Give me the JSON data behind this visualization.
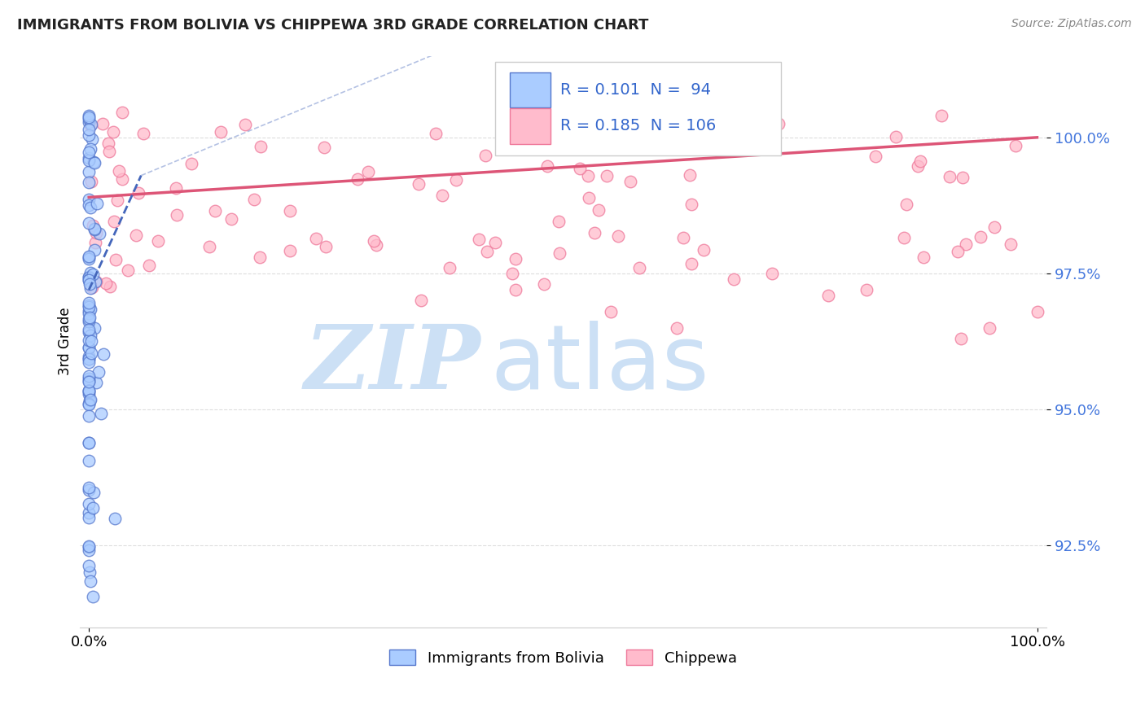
{
  "title": "IMMIGRANTS FROM BOLIVIA VS CHIPPEWA 3RD GRADE CORRELATION CHART",
  "source_text": "Source: ZipAtlas.com",
  "ylabel": "3rd Grade",
  "xlim_min": -1,
  "xlim_max": 101,
  "ylim_min": 91.0,
  "ylim_max": 101.5,
  "ytick_values": [
    92.5,
    95.0,
    97.5,
    100.0
  ],
  "ytick_labels": [
    "92.5%",
    "95.0%",
    "97.5%",
    "100.0%"
  ],
  "xtick_values": [
    0,
    100
  ],
  "xtick_labels": [
    "0.0%",
    "100.0%"
  ],
  "legend_text_blue": "R = 0.101  N =  94",
  "legend_text_pink": "R = 0.185  N = 106",
  "legend_label1": "Immigrants from Bolivia",
  "legend_label2": "Chippewa",
  "blue_fill": "#aaccff",
  "blue_edge": "#5577cc",
  "pink_fill": "#ffbbcc",
  "pink_edge": "#ee7799",
  "trend_blue_color": "#4466bb",
  "trend_pink_color": "#dd5577",
  "legend_color": "#3366cc",
  "tick_color": "#4477dd",
  "title_color": "#222222",
  "source_color": "#888888",
  "watermark_zip_color": "#cce0f5",
  "watermark_atlas_color": "#cce0f5",
  "grid_color": "#dddddd",
  "blue_seed": 777,
  "pink_seed": 888
}
